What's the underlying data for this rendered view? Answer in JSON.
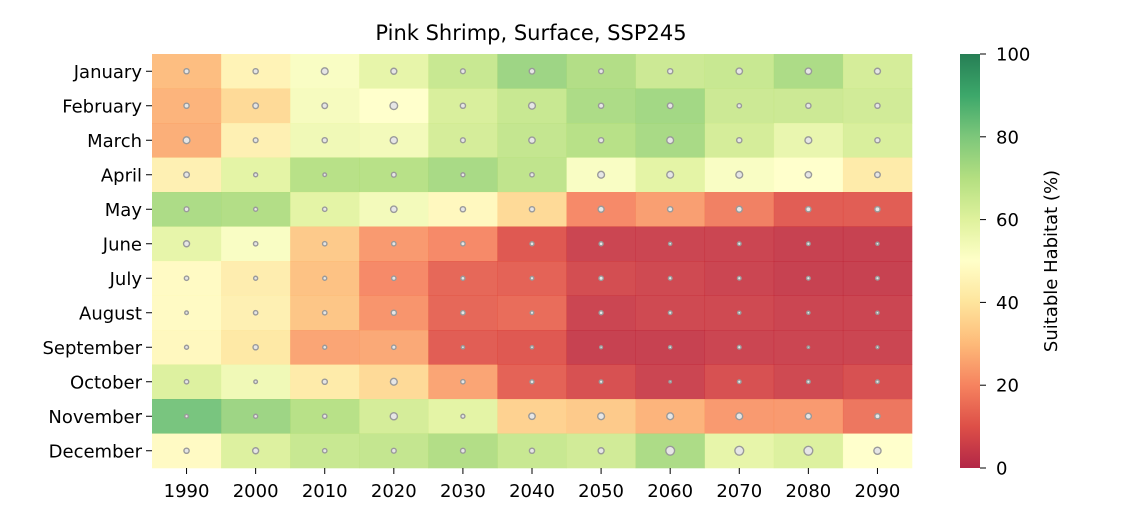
{
  "chart_data": {
    "type": "heatmap",
    "title": "Pink Shrimp, Surface, SSP245",
    "xlabel": "",
    "ylabel": "",
    "x_categories": [
      "1990",
      "2000",
      "2010",
      "2020",
      "2030",
      "2040",
      "2050",
      "2060",
      "2070",
      "2080",
      "2090"
    ],
    "y_categories": [
      "January",
      "February",
      "March",
      "April",
      "May",
      "June",
      "July",
      "August",
      "September",
      "October",
      "November",
      "December"
    ],
    "values": [
      [
        30,
        45,
        52,
        58,
        66,
        75,
        71,
        65,
        66,
        72,
        63
      ],
      [
        28,
        37,
        53,
        50,
        62,
        66,
        72,
        74,
        65,
        65,
        64
      ],
      [
        27,
        44,
        55,
        54,
        63,
        67,
        70,
        73,
        63,
        57,
        62
      ],
      [
        44,
        59,
        70,
        70,
        73,
        68,
        52,
        59,
        52,
        50,
        42
      ],
      [
        72,
        71,
        59,
        54,
        47,
        37,
        20,
        24,
        18,
        11,
        11
      ],
      [
        58,
        52,
        33,
        23,
        20,
        10,
        5,
        5,
        5,
        4,
        4
      ],
      [
        48,
        43,
        31,
        20,
        13,
        12,
        7,
        6,
        5,
        4,
        4
      ],
      [
        48,
        44,
        32,
        22,
        13,
        14,
        5,
        6,
        6,
        5,
        5
      ],
      [
        47,
        41,
        25,
        26,
        11,
        10,
        4,
        4,
        5,
        5,
        5
      ],
      [
        61,
        55,
        42,
        37,
        25,
        12,
        8,
        5,
        8,
        6,
        8
      ],
      [
        82,
        75,
        70,
        63,
        59,
        35,
        33,
        28,
        23,
        23,
        16
      ],
      [
        48,
        61,
        66,
        67,
        71,
        66,
        64,
        72,
        58,
        61,
        50
      ]
    ],
    "dot_sizes": [
      [
        2.6,
        2.6,
        3.4,
        3.0,
        2.4,
        2.8,
        2.4,
        2.6,
        3.2,
        3.2,
        3.0
      ],
      [
        2.6,
        2.8,
        2.8,
        3.8,
        2.6,
        3.4,
        2.6,
        2.8,
        2.2,
        2.6,
        2.6
      ],
      [
        3.4,
        2.4,
        2.6,
        3.6,
        2.4,
        3.2,
        2.6,
        3.4,
        2.6,
        3.4,
        2.6
      ],
      [
        2.8,
        2.0,
        1.8,
        2.4,
        2.0,
        2.2,
        3.4,
        3.4,
        3.4,
        3.2,
        2.8
      ],
      [
        2.4,
        2.0,
        2.2,
        3.2,
        2.6,
        2.6,
        3.0,
        2.6,
        3.0,
        2.6,
        2.6
      ],
      [
        3.0,
        2.2,
        2.2,
        2.2,
        2.2,
        2.0,
        2.0,
        1.6,
        1.8,
        1.8,
        1.6
      ],
      [
        2.2,
        2.0,
        2.0,
        2.2,
        2.0,
        1.8,
        2.2,
        1.8,
        1.8,
        1.8,
        1.8
      ],
      [
        1.8,
        2.2,
        2.2,
        2.6,
        2.2,
        1.8,
        2.0,
        1.8,
        1.6,
        1.6,
        1.6
      ],
      [
        2.0,
        2.6,
        2.0,
        2.2,
        1.6,
        1.6,
        1.4,
        1.6,
        1.8,
        1.2,
        1.4
      ],
      [
        2.2,
        1.8,
        2.6,
        3.4,
        2.2,
        2.0,
        1.8,
        1.2,
        1.8,
        1.8,
        1.8
      ],
      [
        1.8,
        2.0,
        2.2,
        3.6,
        2.0,
        3.2,
        3.4,
        3.4,
        3.4,
        3.0,
        2.6
      ],
      [
        2.6,
        3.0,
        2.2,
        2.4,
        2.4,
        2.6,
        3.0,
        4.4,
        4.4,
        4.4,
        3.6
      ]
    ],
    "colorbar": {
      "label": "Suitable Habitat (%)",
      "range": [
        0,
        100
      ],
      "ticks": [
        "0",
        "20",
        "40",
        "60",
        "80",
        "100"
      ],
      "colormap": "RdYlGn"
    },
    "grid": false,
    "legend": "none"
  }
}
